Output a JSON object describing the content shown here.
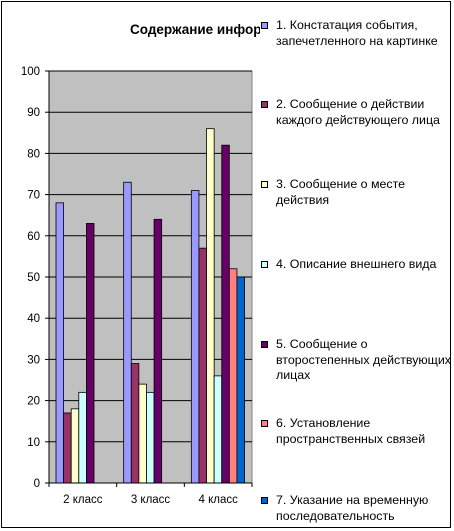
{
  "chart_data": {
    "type": "bar",
    "title": "Содержание информации",
    "categories": [
      "2 класс",
      "3 класс",
      "4 класс"
    ],
    "ylim": [
      0,
      100
    ],
    "yticks": [
      0,
      10,
      20,
      30,
      40,
      50,
      60,
      70,
      80,
      90,
      100
    ],
    "grid": true,
    "legend_position": "right",
    "series": [
      {
        "name": "1. Констатация события, запечетленного на картинке",
        "color": "#9999ff",
        "values": [
          68,
          73,
          71
        ]
      },
      {
        "name": "2. Сообщение о действии каждого действующего лица",
        "color": "#993366",
        "values": [
          17,
          29,
          57
        ]
      },
      {
        "name": "3. Сообщение о месте действия",
        "color": "#ffffcc",
        "values": [
          18,
          24,
          86
        ]
      },
      {
        "name": "4. Описание внешнего вида",
        "color": "#ccffff",
        "values": [
          22,
          22,
          26
        ]
      },
      {
        "name": "5. Сообщение о второстепенных действующих лицах",
        "color": "#660066",
        "values": [
          63,
          64,
          82
        ]
      },
      {
        "name": "6. Установление пространственных связей",
        "color": "#ff8080",
        "values": [
          null,
          null,
          52
        ]
      },
      {
        "name": "7. Указание на временную последовательность",
        "color": "#0066cc",
        "values": [
          null,
          null,
          50
        ]
      }
    ]
  }
}
